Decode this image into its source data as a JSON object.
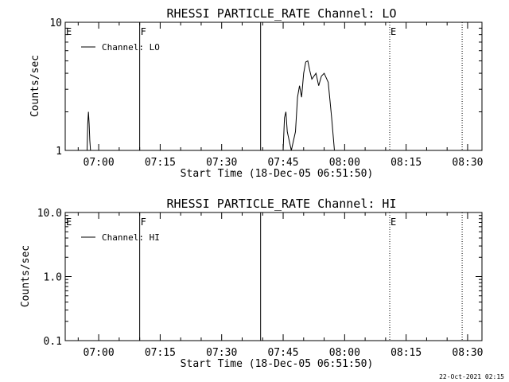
{
  "chart_data": [
    {
      "type": "line",
      "title": "RHESSI PARTICLE_RATE Channel: LO",
      "xlabel": "Start Time (18-Dec-05 06:51:50)",
      "ylabel": "Counts/sec",
      "xlim": [
        "06:51:50",
        "08:33:30"
      ],
      "ylim": [
        1,
        10
      ],
      "yscale": "log",
      "x_ticks": [
        "07:00",
        "07:15",
        "07:30",
        "07:45",
        "08:00",
        "08:15",
        "08:30"
      ],
      "y_ticks": [
        {
          "value": 1,
          "label": "1"
        },
        {
          "value": 10,
          "label": "10"
        }
      ],
      "legend": {
        "entries": [
          "Channel: LO"
        ],
        "location": "top-left"
      },
      "markers": [
        {
          "time": "06:51:50",
          "label": "E",
          "style": "solid"
        },
        {
          "time": "07:10:00",
          "label": "F",
          "style": "solid"
        },
        {
          "time": "07:39:30",
          "label": "",
          "style": "solid"
        },
        {
          "time": "08:11:00",
          "label": "E",
          "style": "dotted"
        },
        {
          "time": "08:28:40",
          "label": "",
          "style": "dotted"
        }
      ],
      "series": [
        {
          "name": "Channel: LO",
          "x": [
            "06:57:10",
            "06:57:20",
            "06:57:30",
            "06:57:40",
            "06:57:50",
            "06:58:00",
            "07:45:00",
            "07:45:20",
            "07:45:40",
            "07:46:00",
            "07:47:00",
            "07:48:00",
            "07:48:30",
            "07:49:00",
            "07:49:30",
            "07:50:00",
            "07:50:30",
            "07:51:00",
            "07:51:30",
            "07:52:00",
            "07:53:00",
            "07:53:40",
            "07:54:20",
            "07:55:00",
            "07:56:00",
            "07:56:50",
            "07:57:30"
          ],
          "y": [
            1.0,
            1.6,
            2.0,
            1.6,
            1.2,
            1.0,
            1.0,
            1.8,
            2.0,
            1.4,
            1.0,
            1.4,
            2.6,
            3.2,
            2.6,
            4.0,
            4.9,
            5.0,
            4.2,
            3.6,
            4.0,
            3.2,
            3.8,
            4.0,
            3.4,
            1.8,
            1.0
          ]
        }
      ]
    },
    {
      "type": "line",
      "title": "RHESSI PARTICLE_RATE Channel: HI",
      "xlabel": "Start Time (18-Dec-05 06:51:50)",
      "ylabel": "Counts/sec",
      "xlim": [
        "06:51:50",
        "08:33:30"
      ],
      "ylim": [
        0.1,
        10
      ],
      "yscale": "log",
      "x_ticks": [
        "07:00",
        "07:15",
        "07:30",
        "07:45",
        "08:00",
        "08:15",
        "08:30"
      ],
      "y_ticks": [
        {
          "value": 0.1,
          "label": "0.1"
        },
        {
          "value": 1,
          "label": "1.0"
        },
        {
          "value": 10,
          "label": "10.0"
        }
      ],
      "legend": {
        "entries": [
          "Channel: HI"
        ],
        "location": "top-left"
      },
      "markers": [
        {
          "time": "06:51:50",
          "label": "E",
          "style": "solid"
        },
        {
          "time": "07:10:00",
          "label": "F",
          "style": "solid"
        },
        {
          "time": "07:39:30",
          "label": "",
          "style": "solid"
        },
        {
          "time": "08:11:00",
          "label": "E",
          "style": "dotted"
        },
        {
          "time": "08:28:40",
          "label": "",
          "style": "dotted"
        }
      ],
      "series": [
        {
          "name": "Channel: HI",
          "x": [],
          "y": []
        }
      ]
    }
  ],
  "footer": {
    "timestamp": "22-Oct-2021 02:15"
  }
}
